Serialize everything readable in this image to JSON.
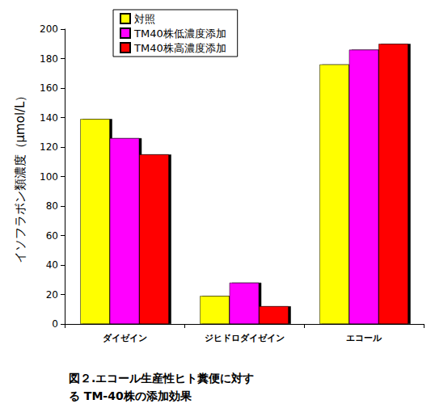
{
  "chart_data": {
    "type": "bar",
    "title": "図２.エコール生産性ヒト糞便に対す\nる TM-40株の添加効果",
    "y_label": "イソフラボン類濃度（μmol/L）",
    "categories": [
      "ダイゼイン",
      "ジヒドロダイゼイン",
      "エコール"
    ],
    "series": [
      {
        "name": "対照",
        "color": "#ffff00",
        "values": [
          139,
          19,
          176
        ]
      },
      {
        "name": "TM40株低濃度添加",
        "color": "#ff00ff",
        "values": [
          126,
          28,
          186
        ]
      },
      {
        "name": "TM40株高濃度添加",
        "color": "#ff0000",
        "values": [
          115,
          12,
          190
        ]
      }
    ],
    "ylim": [
      0,
      200
    ],
    "yticks": [
      0,
      20,
      40,
      60,
      80,
      100,
      120,
      140,
      160,
      180,
      200
    ],
    "grid": false,
    "legend": "top"
  }
}
